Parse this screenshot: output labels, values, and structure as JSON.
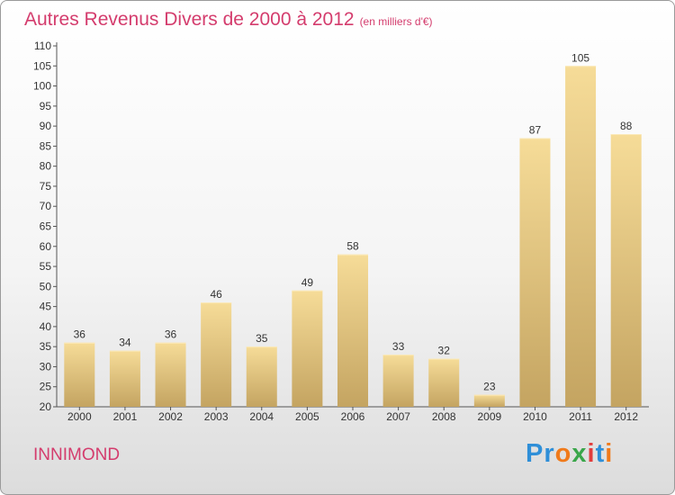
{
  "title": "Autres Revenus Divers de 2000 à 2012",
  "subtitle": "(en milliers d'€)",
  "commune": "INNIMOND",
  "logo": {
    "letters": [
      "P",
      "r",
      "o",
      "x",
      "i",
      "t",
      "i"
    ],
    "colors": [
      "#2f8fd8",
      "#2f8fd8",
      "#f07a1a",
      "#3aa64a",
      "#e23c3c",
      "#2f8fd8",
      "#f07a1a"
    ]
  },
  "colors": {
    "title": "#d43c6d",
    "bar_top": "#f6dc98",
    "bar_bottom": "#c4a461",
    "label": "#333333"
  },
  "chart_data": {
    "type": "bar",
    "categories": [
      "2000",
      "2001",
      "2002",
      "2003",
      "2004",
      "2005",
      "2006",
      "2007",
      "2008",
      "2009",
      "2010",
      "2011",
      "2012"
    ],
    "values": [
      36,
      34,
      36,
      46,
      35,
      49,
      58,
      33,
      32,
      23,
      87,
      105,
      88
    ],
    "data_labels": [
      "36",
      "34",
      "36",
      "46",
      "35",
      "49",
      "58",
      "33",
      "32",
      "23",
      "87",
      "105",
      "88"
    ],
    "yticks": [
      "20",
      "25",
      "30",
      "35",
      "40",
      "45",
      "50",
      "55",
      "60",
      "65",
      "70",
      "75",
      "80",
      "85",
      "90",
      "95",
      "100",
      "105",
      "110"
    ],
    "ylim": [
      20,
      110
    ],
    "grid": false,
    "legend": "none"
  }
}
